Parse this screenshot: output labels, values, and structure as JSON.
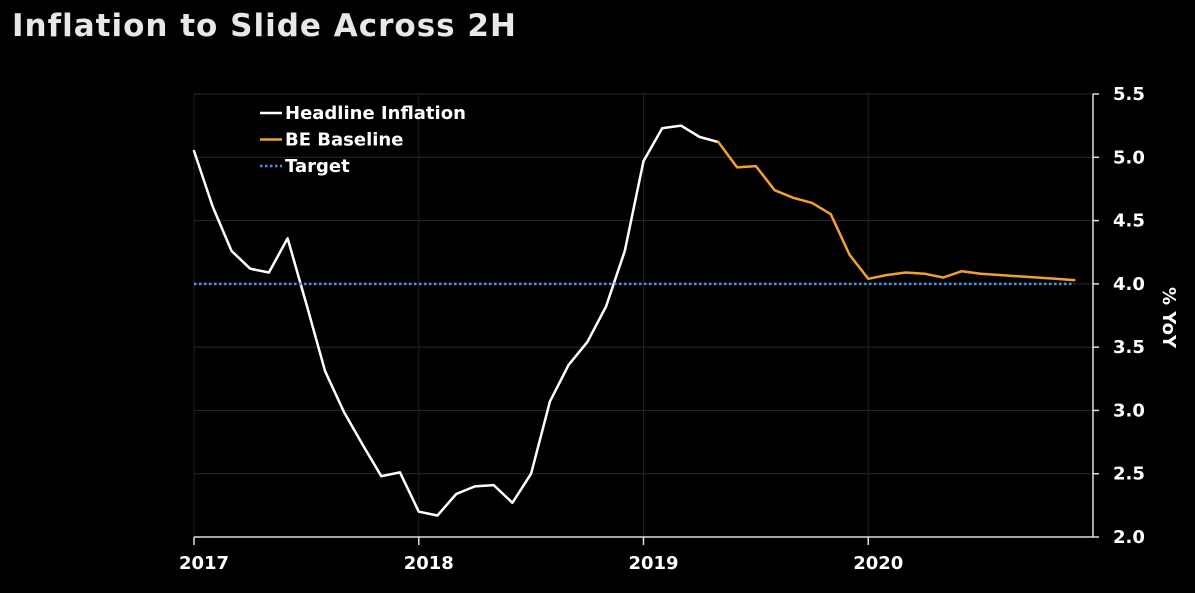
{
  "chart_data": {
    "type": "line",
    "title": "Inflation to Slide Across 2H",
    "ylabel": "% YoY",
    "xlabel": "",
    "ylim": [
      2.0,
      5.5
    ],
    "xlim": [
      "2017-01",
      "2020-12"
    ],
    "yticks": [
      "2.0",
      "2.5",
      "3.0",
      "3.5",
      "4.0",
      "4.5",
      "5.0",
      "5.5"
    ],
    "xticks": [
      "2017",
      "2018",
      "2019",
      "2020"
    ],
    "grid": true,
    "legend_position": "top-left",
    "series": [
      {
        "name": "Headline Inflation",
        "color": "#ffffff",
        "style": "solid",
        "x": [
          "2017-01",
          "2017-02",
          "2017-03",
          "2017-04",
          "2017-05",
          "2017-06",
          "2017-07",
          "2017-08",
          "2017-09",
          "2017-10",
          "2017-11",
          "2017-12",
          "2018-01",
          "2018-02",
          "2018-03",
          "2018-04",
          "2018-05",
          "2018-06",
          "2018-07",
          "2018-08",
          "2018-09",
          "2018-10",
          "2018-11",
          "2018-12",
          "2019-01",
          "2019-02",
          "2019-03",
          "2019-04",
          "2019-05"
        ],
        "values": [
          5.05,
          4.61,
          4.26,
          4.12,
          4.09,
          4.36,
          3.84,
          3.31,
          2.99,
          2.73,
          2.48,
          2.51,
          2.2,
          2.17,
          2.34,
          2.4,
          2.41,
          2.27,
          2.5,
          3.07,
          3.36,
          3.54,
          3.82,
          4.26,
          4.97,
          5.23,
          5.25,
          5.16,
          5.12
        ]
      },
      {
        "name": "BE Baseline",
        "color": "#f0a030",
        "style": "solid",
        "x": [
          "2019-05",
          "2019-06",
          "2019-07",
          "2019-08",
          "2019-09",
          "2019-10",
          "2019-11",
          "2019-12",
          "2020-01",
          "2020-02",
          "2020-03",
          "2020-04",
          "2020-05",
          "2020-06",
          "2020-07",
          "2020-08",
          "2020-09",
          "2020-10",
          "2020-11",
          "2020-12"
        ],
        "values": [
          5.12,
          4.92,
          4.93,
          4.74,
          4.68,
          4.64,
          4.55,
          4.23,
          4.04,
          4.07,
          4.09,
          4.08,
          4.05,
          4.1,
          4.08,
          4.07,
          4.06,
          4.05,
          4.04,
          4.03
        ]
      },
      {
        "name": "Target",
        "color": "#4a90e2",
        "style": "dotted",
        "x": [
          "2017-01",
          "2020-12"
        ],
        "values": [
          4.0,
          4.0
        ]
      }
    ]
  }
}
